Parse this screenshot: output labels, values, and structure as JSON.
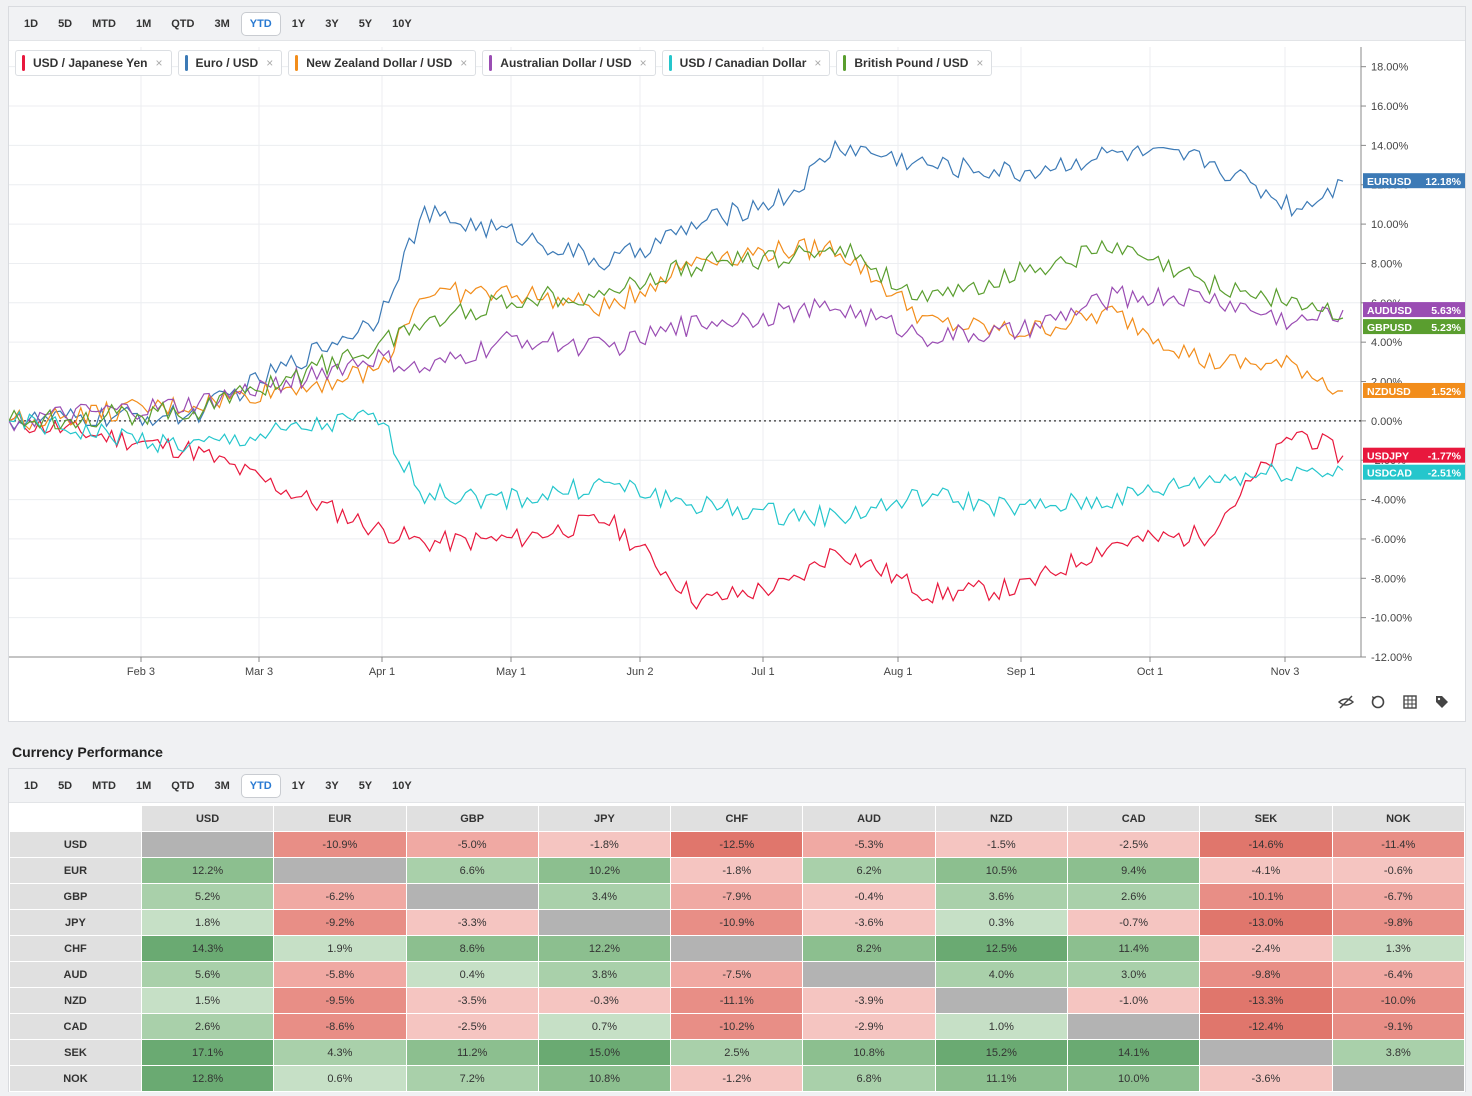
{
  "ranges": [
    "1D",
    "5D",
    "MTD",
    "1M",
    "QTD",
    "3M",
    "YTD",
    "1Y",
    "3Y",
    "5Y",
    "10Y"
  ],
  "active_range": "YTD",
  "legend": [
    {
      "label": "USD / Japanese Yen",
      "color": "#e8183d"
    },
    {
      "label": "Euro / USD",
      "color": "#3c7ab6"
    },
    {
      "label": "New Zealand Dollar / USD",
      "color": "#f28d1b"
    },
    {
      "label": "Australian Dollar / USD",
      "color": "#9a4db3"
    },
    {
      "label": "USD / Canadian Dollar",
      "color": "#25c6cc"
    },
    {
      "label": "British Pound / USD",
      "color": "#5a9e2f"
    }
  ],
  "chart_data": {
    "type": "line",
    "xlabel": "",
    "ylabel": "",
    "ylim": [
      -12,
      19
    ],
    "x_ticks": [
      "Feb 3",
      "Mar 3",
      "Apr 1",
      "May 1",
      "Jun 2",
      "Jul 1",
      "Aug 1",
      "Sep 1",
      "Oct 1",
      "Nov 3"
    ],
    "y_ticks": [
      "18.00%",
      "16.00%",
      "14.00%",
      "12.00%",
      "10.00%",
      "8.00%",
      "6.00%",
      "4.00%",
      "2.00%",
      "0.00%",
      "-2.00%",
      "-4.00%",
      "-6.00%",
      "-8.00%",
      "-10.00%",
      "-12.00%"
    ],
    "x_index": [
      0,
      4,
      8,
      9,
      11,
      13,
      15,
      17,
      18,
      20,
      22,
      24,
      26,
      28,
      29
    ],
    "series": [
      {
        "name": "USDJPY",
        "value_label": "-1.77%",
        "color": "#e8183d",
        "values": [
          0,
          -1.5,
          -5.5,
          -6.2,
          -6,
          -5,
          -9.2,
          -8.3,
          -6.5,
          -8.8,
          -8.5,
          -6.2,
          -5.8,
          -0.5,
          -1.77
        ]
      },
      {
        "name": "EURUSD",
        "value_label": "12.18%",
        "color": "#3c7ab6",
        "values": [
          0,
          0.3,
          5.2,
          10.5,
          9.5,
          8,
          10,
          11.5,
          14,
          13,
          12.6,
          13.6,
          13.3,
          10.8,
          12.18
        ]
      },
      {
        "name": "NZDUSD",
        "value_label": "1.52%",
        "color": "#f28d1b",
        "values": [
          0,
          0.8,
          2.5,
          6.5,
          6.5,
          5.7,
          8.3,
          8.7,
          8.8,
          5,
          4.5,
          5.5,
          3,
          2.8,
          1.52
        ]
      },
      {
        "name": "AUDUSD",
        "value_label": "5.63%",
        "color": "#9a4db3",
        "values": [
          0,
          0.8,
          3.2,
          2.5,
          4.2,
          3.7,
          5.0,
          5.5,
          5.8,
          4.3,
          4.5,
          6.3,
          6.3,
          5.0,
          5.63
        ]
      },
      {
        "name": "USDCAD",
        "value_label": "-2.51%",
        "color": "#25c6cc",
        "values": [
          0,
          -1.3,
          0.2,
          -3.7,
          -4.0,
          -3.2,
          -4.3,
          -4.8,
          -4.9,
          -3.8,
          -4.5,
          -4.0,
          -3.0,
          -2.5,
          -2.51
        ]
      },
      {
        "name": "GBPUSD",
        "value_label": "5.23%",
        "color": "#5a9e2f",
        "values": [
          0,
          0.5,
          3.8,
          5.0,
          6.2,
          6.5,
          8.0,
          8.3,
          9.0,
          6.0,
          7.6,
          8.8,
          7.0,
          6.0,
          5.23
        ]
      }
    ]
  },
  "perf_title": "Currency Performance",
  "matrix": {
    "columns": [
      "USD",
      "EUR",
      "GBP",
      "JPY",
      "CHF",
      "AUD",
      "NZD",
      "CAD",
      "SEK",
      "NOK"
    ],
    "rows": [
      {
        "label": "USD",
        "cells": [
          "",
          "-10.9%",
          "-5.0%",
          "-1.8%",
          "-12.5%",
          "-5.3%",
          "-1.5%",
          "-2.5%",
          "-14.6%",
          "-11.4%"
        ]
      },
      {
        "label": "EUR",
        "cells": [
          "12.2%",
          "",
          "6.6%",
          "10.2%",
          "-1.8%",
          "6.2%",
          "10.5%",
          "9.4%",
          "-4.1%",
          "-0.6%"
        ]
      },
      {
        "label": "GBP",
        "cells": [
          "5.2%",
          "-6.2%",
          "",
          "3.4%",
          "-7.9%",
          "-0.4%",
          "3.6%",
          "2.6%",
          "-10.1%",
          "-6.7%"
        ]
      },
      {
        "label": "JPY",
        "cells": [
          "1.8%",
          "-9.2%",
          "-3.3%",
          "",
          "-10.9%",
          "-3.6%",
          "0.3%",
          "-0.7%",
          "-13.0%",
          "-9.8%"
        ]
      },
      {
        "label": "CHF",
        "cells": [
          "14.3%",
          "1.9%",
          "8.6%",
          "12.2%",
          "",
          "8.2%",
          "12.5%",
          "11.4%",
          "-2.4%",
          "1.3%"
        ]
      },
      {
        "label": "AUD",
        "cells": [
          "5.6%",
          "-5.8%",
          "0.4%",
          "3.8%",
          "-7.5%",
          "",
          "4.0%",
          "3.0%",
          "-9.8%",
          "-6.4%"
        ]
      },
      {
        "label": "NZD",
        "cells": [
          "1.5%",
          "-9.5%",
          "-3.5%",
          "-0.3%",
          "-11.1%",
          "-3.9%",
          "",
          "-1.0%",
          "-13.3%",
          "-10.0%"
        ]
      },
      {
        "label": "CAD",
        "cells": [
          "2.6%",
          "-8.6%",
          "-2.5%",
          "0.7%",
          "-10.2%",
          "-2.9%",
          "1.0%",
          "",
          "-12.4%",
          "-9.1%"
        ]
      },
      {
        "label": "SEK",
        "cells": [
          "17.1%",
          "4.3%",
          "11.2%",
          "15.0%",
          "2.5%",
          "10.8%",
          "15.2%",
          "14.1%",
          "",
          "3.8%"
        ]
      },
      {
        "label": "NOK",
        "cells": [
          "12.8%",
          "0.6%",
          "7.2%",
          "10.8%",
          "-1.2%",
          "6.8%",
          "11.1%",
          "10.0%",
          "-3.6%",
          ""
        ]
      }
    ]
  },
  "tools": [
    "hide-icon",
    "reset-icon",
    "grid-icon",
    "tag-icon"
  ]
}
